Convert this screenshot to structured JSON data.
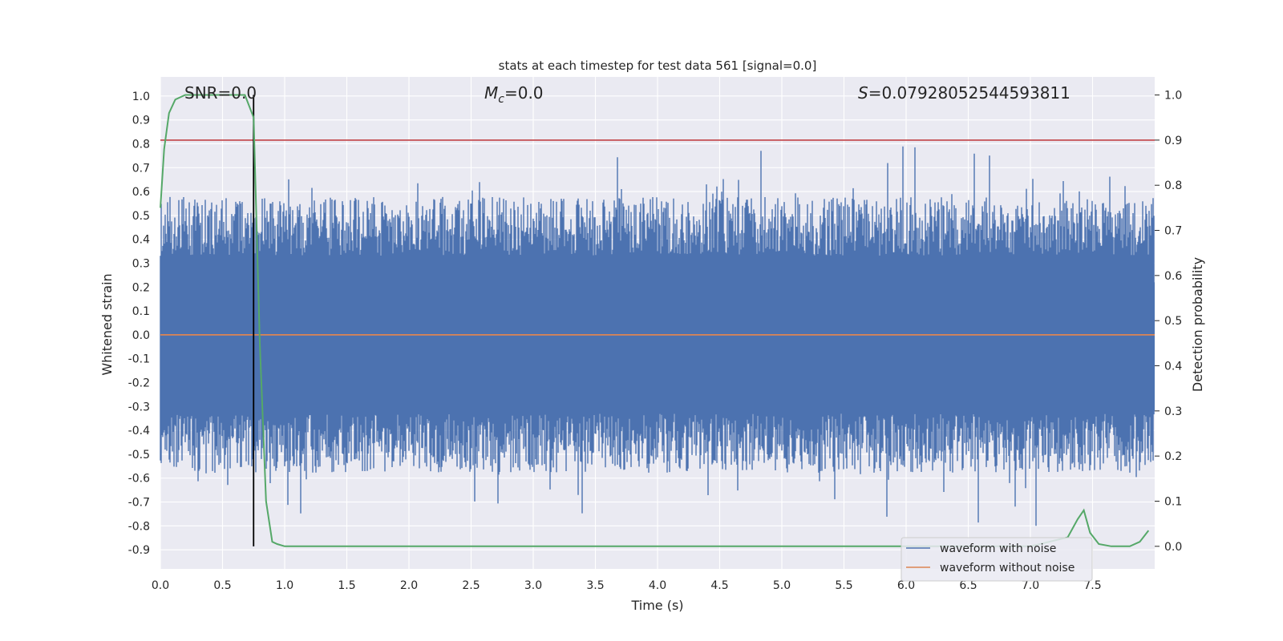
{
  "chart_data": {
    "type": "line",
    "title": "stats at each timestep for test data 561 [signal=0.0]",
    "xlabel": "Time (s)",
    "ylabel": "Whitened strain",
    "y2label": "Detection probability",
    "xlim": [
      0.0,
      8.0
    ],
    "ylim": [
      -0.98,
      1.08
    ],
    "y2lim": [
      -0.05,
      1.04
    ],
    "x_ticks": [
      0.0,
      0.5,
      1.0,
      1.5,
      2.0,
      2.5,
      3.0,
      3.5,
      4.0,
      4.5,
      5.0,
      5.5,
      6.0,
      6.5,
      7.0,
      7.5
    ],
    "x_tick_labels": [
      "0.0",
      "0.5",
      "1.0",
      "1.5",
      "2.0",
      "2.5",
      "3.0",
      "3.5",
      "4.0",
      "4.5",
      "5.0",
      "5.5",
      "6.0",
      "6.5",
      "7.0",
      "7.5"
    ],
    "y_ticks": [
      1.0,
      0.9,
      0.8,
      0.7,
      0.6,
      0.5,
      0.4,
      0.3,
      0.2,
      0.1,
      0.0,
      -0.1,
      -0.2,
      -0.3,
      -0.4,
      -0.5,
      -0.6,
      -0.7,
      -0.8,
      -0.9
    ],
    "y_tick_labels": [
      "1.0",
      "0.9",
      "0.8",
      "0.7",
      "0.6",
      "0.5",
      "0.4",
      "0.3",
      "0.2",
      "0.1",
      "0.0",
      "-0.1",
      "-0.2",
      "-0.3",
      "-0.4",
      "-0.5",
      "-0.6",
      "-0.7",
      "-0.8",
      "-0.9"
    ],
    "y2_ticks": [
      1.0,
      0.9,
      0.8,
      0.7,
      0.6,
      0.5,
      0.4,
      0.3,
      0.2,
      0.1,
      0.0
    ],
    "y2_tick_labels": [
      "1.0",
      "0.9",
      "0.8",
      "0.7",
      "0.6",
      "0.5",
      "0.4",
      "0.3",
      "0.2",
      "0.1",
      "0.0"
    ],
    "grid": true,
    "legend_position": "bottom-right",
    "annotations": {
      "snr": "SNR=0.0",
      "mc_symbol": "M",
      "mc_sub": "c",
      "mc_value": "=0.0",
      "s_symbol": "S",
      "s_value": "=0.07928052544593811"
    },
    "series": [
      {
        "name": "waveform with noise",
        "color": "#4c72b0",
        "axis": "left",
        "description": "dense noisy whitened strain, roughly within [-0.9, 1.0]",
        "envelope": {
          "typical_max": 0.55,
          "typical_min": -0.55,
          "peak_max": 1.0,
          "peak_min": -0.88
        }
      },
      {
        "name": "waveform without noise",
        "color": "#dd8452",
        "axis": "left",
        "x": [
          0.0,
          8.0
        ],
        "y": [
          0.0,
          0.0
        ]
      },
      {
        "axis": "right",
        "color": "#55a868",
        "x": [
          0.0,
          0.03,
          0.07,
          0.12,
          0.2,
          0.3,
          0.4,
          0.5,
          0.6,
          0.68,
          0.75,
          0.8,
          0.85,
          0.9,
          0.94,
          1.0,
          1.5,
          1.9,
          2.1,
          2.5,
          3.0,
          4.0,
          5.0,
          6.0,
          7.0,
          7.3,
          7.38,
          7.43,
          7.48,
          7.55,
          7.65,
          7.8,
          7.88,
          7.95
        ],
        "y": [
          0.75,
          0.88,
          0.96,
          0.99,
          1.0,
          1.0,
          1.0,
          1.0,
          1.0,
          1.0,
          0.95,
          0.45,
          0.1,
          0.01,
          0.005,
          0.0,
          0.0,
          0.0,
          0.0,
          0.0,
          0.0,
          0.0,
          0.0,
          0.0,
          0.0,
          0.02,
          0.06,
          0.08,
          0.03,
          0.005,
          0.0,
          0.0,
          0.01,
          0.035
        ]
      },
      {
        "axis": "right",
        "color": "#c44e52",
        "x": [
          0.0,
          8.0
        ],
        "y": [
          0.9,
          0.9
        ]
      }
    ],
    "vertical_marker": {
      "x": 0.75,
      "color": "#000000"
    }
  }
}
